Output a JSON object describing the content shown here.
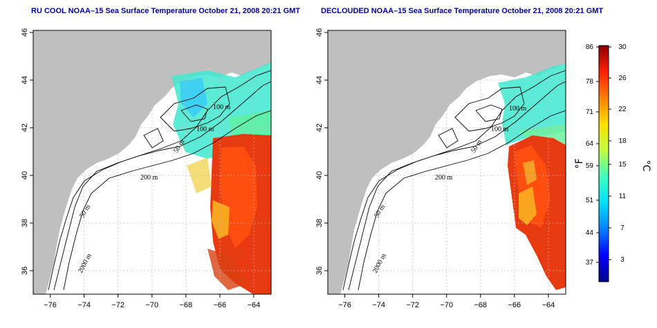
{
  "maps": [
    {
      "id": "left",
      "title": "RU COOL NOAA–15 Sea Surface Temperature October 21, 2008 20:21 GMT",
      "contour_labels": [
        "100 m",
        "100 m",
        "50 m",
        "200 m",
        "50 m",
        "2000 m"
      ]
    },
    {
      "id": "right",
      "title": "DECLOUDED NOAA–15 Sea Surface Temperature October 21, 2008 20:21 GMT",
      "contour_labels": [
        "100 m",
        "100 m",
        "50 m",
        "200 m",
        "50 m",
        "2000 m"
      ]
    }
  ],
  "x_ticks": [
    "−76",
    "−74",
    "−72",
    "−70",
    "−68",
    "−66",
    "−64"
  ],
  "y_ticks": [
    "36",
    "38",
    "40",
    "42",
    "44",
    "46"
  ],
  "colorbar": {
    "fahrenheit_ticks": [
      "86",
      "78",
      "71",
      "64",
      "59",
      "51",
      "44",
      "37"
    ],
    "celsius_ticks": [
      "30",
      "26",
      "22",
      "18",
      "15",
      "11",
      "7",
      "3"
    ],
    "f_unit": "°F",
    "c_unit": "°C",
    "colors": [
      "#00008b",
      "#0000ff",
      "#0080ff",
      "#00e0ff",
      "#40ffc0",
      "#c0ff40",
      "#ffe000",
      "#ff8000",
      "#ff2000",
      "#8b0000"
    ]
  },
  "colors": {
    "land": "#bfbfbf",
    "title": "#0000a8"
  }
}
